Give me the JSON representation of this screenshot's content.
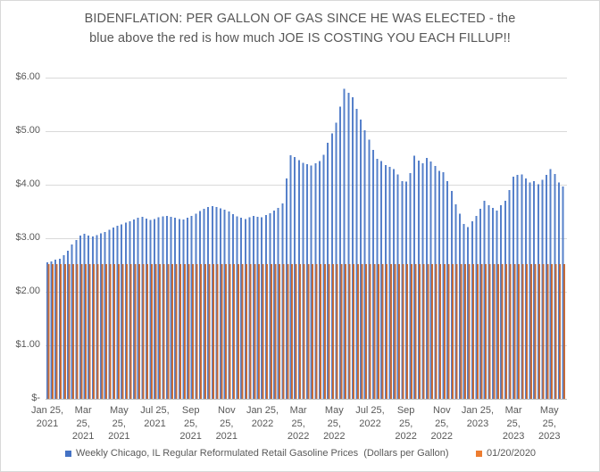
{
  "title": "BIDENFLATION:  PER GALLON OF GAS SINCE HE WAS ELECTED - the\nblue above the red is how much JOE IS COSTING YOU EACH FILLUP!!",
  "chart_data": {
    "type": "bar",
    "title": "BIDENFLATION:  PER GALLON OF GAS SINCE HE WAS ELECTED - the blue above the red is how much JOE IS COSTING YOU EACH FILLUP!!",
    "x_unit": "week",
    "x_start": "Jan 25, 2021",
    "x_end": "Jun 2023",
    "ylim": [
      0,
      6
    ],
    "gridlines": true,
    "legend_position": "bottom",
    "y_tick_labels": [
      "$6.00",
      "$5.00",
      "$4.00",
      "$3.00",
      "$2.00",
      "$1.00",
      "$-"
    ],
    "x_tick_labels": [
      "Jan 25,\n2021",
      "Mar\n25,\n2021",
      "May\n25,\n2021",
      "Jul 25,\n2021",
      "Sep\n25,\n2021",
      "Nov\n25,\n2021",
      "Jan 25,\n2022",
      "Mar\n25,\n2022",
      "May\n25,\n2022",
      "Jul 25,\n2022",
      "Sep\n25,\n2022",
      "Nov\n25,\n2022",
      "Jan 25,\n2023",
      "Mar\n25,\n2023",
      "May\n25,\n2023"
    ],
    "series": [
      {
        "name": "Weekly Chicago, IL Regular Reformulated Retail Gasoline Prices  (Dollars per Gallon)",
        "color": "#4472C4",
        "bar_color": "#4472C4",
        "values": [
          2.55,
          2.57,
          2.6,
          2.62,
          2.68,
          2.77,
          2.88,
          2.97,
          3.05,
          3.08,
          3.05,
          3.03,
          3.06,
          3.09,
          3.12,
          3.16,
          3.2,
          3.23,
          3.26,
          3.29,
          3.32,
          3.35,
          3.38,
          3.4,
          3.37,
          3.34,
          3.36,
          3.39,
          3.41,
          3.42,
          3.4,
          3.38,
          3.36,
          3.35,
          3.38,
          3.42,
          3.46,
          3.51,
          3.55,
          3.58,
          3.6,
          3.58,
          3.56,
          3.53,
          3.5,
          3.45,
          3.41,
          3.38,
          3.36,
          3.39,
          3.42,
          3.4,
          3.39,
          3.43,
          3.47,
          3.52,
          3.57,
          3.65,
          4.12,
          4.55,
          4.52,
          4.46,
          4.41,
          4.38,
          4.36,
          4.4,
          4.44,
          4.56,
          4.78,
          4.96,
          5.16,
          5.46,
          5.79,
          5.72,
          5.63,
          5.42,
          5.22,
          5.02,
          4.84,
          4.65,
          4.48,
          4.44,
          4.37,
          4.33,
          4.29,
          4.19,
          4.07,
          4.06,
          4.22,
          4.54,
          4.45,
          4.4,
          4.5,
          4.43,
          4.35,
          4.26,
          4.23,
          4.07,
          3.88,
          3.63,
          3.46,
          3.27,
          3.21,
          3.32,
          3.42,
          3.55,
          3.7,
          3.62,
          3.57,
          3.52,
          3.62,
          3.7,
          3.9,
          4.15,
          4.18,
          4.19,
          4.12,
          4.04,
          4.07,
          4.01,
          4.09,
          4.18,
          4.29,
          4.2,
          4.04,
          3.97
        ]
      },
      {
        "name": "01/20/2020",
        "color": "#ED7D31",
        "bar_color": "#C4652F",
        "constant_value": 2.52
      }
    ]
  },
  "colors": {
    "gridline": "#D9D9D9",
    "axis_line": "#BFBFBF",
    "text": "#595959",
    "background": "#FFFFFF"
  }
}
